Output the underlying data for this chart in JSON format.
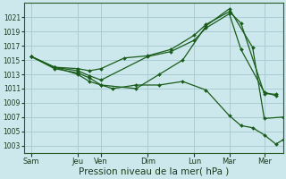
{
  "background_color": "#cce8ec",
  "grid_color": "#a8cdd2",
  "line_color": "#1a5c1a",
  "marker_color": "#1a5c1a",
  "xlabel": "Pression niveau de la mer( hPa )",
  "xlabel_fontsize": 7.5,
  "ylim": [
    1002.0,
    1023.0
  ],
  "yticks": [
    1003,
    1005,
    1007,
    1009,
    1011,
    1013,
    1015,
    1017,
    1019,
    1021
  ],
  "xtick_labels": [
    "Sam",
    "Jeu",
    "Ven",
    "Dim",
    "Lun",
    "Mar",
    "Mer"
  ],
  "xtick_positions": [
    0,
    2,
    3,
    5,
    7,
    8.5,
    10
  ],
  "xlim": [
    -0.3,
    10.8
  ],
  "series": [
    {
      "x": [
        0,
        1,
        2,
        2.5,
        3.0,
        4.0,
        5.0,
        6.0,
        7.0,
        7.5,
        8.5,
        9.0,
        10.0,
        10.5
      ],
      "y": [
        1015.5,
        1014.0,
        1013.8,
        1013.5,
        1013.8,
        1015.3,
        1015.6,
        1016.5,
        1018.5,
        1020.0,
        1021.8,
        1020.2,
        1010.3,
        1010.2
      ]
    },
    {
      "x": [
        0,
        1,
        2,
        2.5,
        3.0,
        5.0,
        6.0,
        7.0,
        7.5,
        8.5,
        9.0,
        10.0,
        10.5
      ],
      "y": [
        1015.5,
        1014.0,
        1013.5,
        1012.8,
        1012.2,
        1015.5,
        1016.2,
        1017.8,
        1019.5,
        1021.5,
        1016.5,
        1010.5,
        1010.0
      ]
    },
    {
      "x": [
        0,
        1,
        2,
        2.5,
        3.0,
        4.5,
        5.5,
        6.5,
        7.5,
        8.5,
        9.5,
        10.0,
        10.8
      ],
      "y": [
        1015.5,
        1014.0,
        1013.0,
        1012.0,
        1011.5,
        1011.0,
        1013.0,
        1015.0,
        1019.8,
        1022.2,
        1016.8,
        1006.8,
        1007.0
      ]
    },
    {
      "x": [
        0,
        1,
        2,
        2.5,
        3.0,
        3.5,
        4.5,
        5.5,
        6.5,
        7.5,
        8.5,
        9.0,
        9.5,
        10.0,
        10.5,
        10.8
      ],
      "y": [
        1015.5,
        1013.8,
        1013.2,
        1012.5,
        1011.5,
        1011.0,
        1011.5,
        1011.5,
        1012.0,
        1010.8,
        1007.2,
        1005.8,
        1005.5,
        1004.5,
        1003.2,
        1003.8
      ]
    }
  ]
}
